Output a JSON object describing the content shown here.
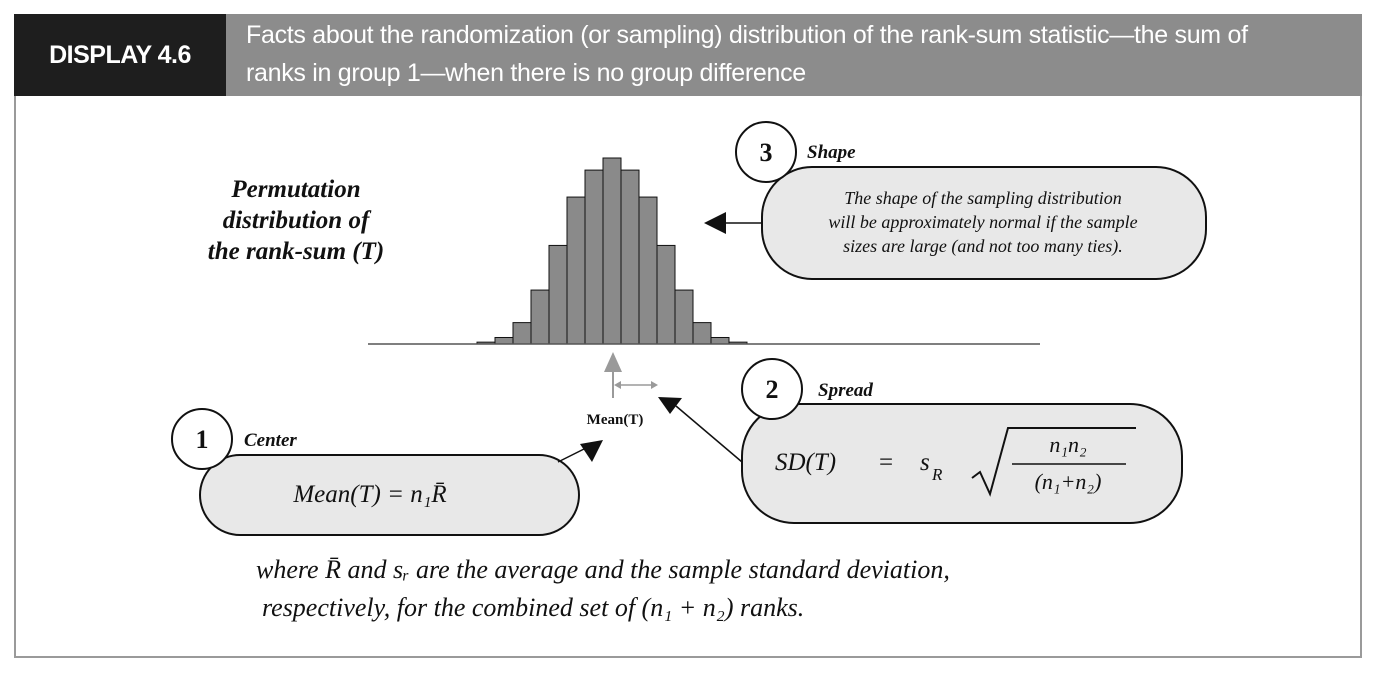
{
  "header": {
    "display_label": "DISPLAY 4.6",
    "title_line1": "Facts about the randomization (or sampling) distribution of the rank-sum statistic—the sum of",
    "title_line2": "ranks in group 1—when there is no group difference"
  },
  "histogram": {
    "title_line1": "Permutation",
    "title_line2": "distribution of",
    "title_line3": "the rank-sum (T)",
    "bar_heights": [
      0.01,
      0.035,
      0.115,
      0.29,
      0.53,
      0.79,
      0.935,
      1.0,
      0.935,
      0.79,
      0.53,
      0.29,
      0.115,
      0.035,
      0.01
    ],
    "mean_label": "Mean(T)"
  },
  "callouts": {
    "center": {
      "number": "1",
      "title": "Center",
      "formula": "Mean(T) = n₁R̄"
    },
    "spread": {
      "number": "2",
      "title": "Spread",
      "lhs": "SD(T)",
      "eq": "=",
      "sR": "s",
      "sR_sub": "R",
      "num": "n₁n₂",
      "den": "(n₁+n₂)"
    },
    "shape": {
      "number": "3",
      "title": "Shape",
      "line1": "The shape of the sampling distribution",
      "line2": "will be approximately normal if the sample",
      "line3": "sizes are large (and not too many ties)."
    }
  },
  "footnote": {
    "line1": "where R̄ and sᵣ are the average and the sample standard deviation,",
    "line2": "respectively, for the combined set of (n₁ + n₂) ranks."
  },
  "colors": {
    "header_dark": "#1e1e1e",
    "header_gray": "#8c8c8c",
    "bar_fill": "#8a8a8a",
    "callout_fill": "#e8e8e8"
  }
}
